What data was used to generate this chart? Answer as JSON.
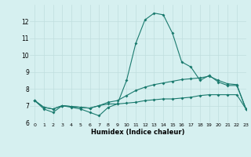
{
  "x": [
    0,
    1,
    2,
    3,
    4,
    5,
    6,
    7,
    8,
    9,
    10,
    11,
    12,
    13,
    14,
    15,
    16,
    17,
    18,
    19,
    20,
    21,
    22,
    23
  ],
  "line1": [
    7.3,
    6.8,
    6.6,
    7.0,
    6.9,
    6.8,
    6.6,
    6.4,
    6.9,
    7.1,
    8.5,
    10.7,
    12.1,
    12.5,
    12.4,
    11.3,
    9.6,
    9.3,
    8.5,
    8.8,
    8.4,
    8.2,
    8.2,
    6.8
  ],
  "line2": [
    7.3,
    6.9,
    6.8,
    7.0,
    6.95,
    6.9,
    6.85,
    7.0,
    7.2,
    7.3,
    7.6,
    7.9,
    8.1,
    8.25,
    8.35,
    8.45,
    8.55,
    8.6,
    8.65,
    8.75,
    8.5,
    8.3,
    8.25,
    6.8
  ],
  "line3": [
    7.3,
    6.9,
    6.8,
    7.0,
    6.95,
    6.9,
    6.85,
    7.0,
    7.1,
    7.1,
    7.15,
    7.2,
    7.3,
    7.35,
    7.4,
    7.4,
    7.45,
    7.5,
    7.6,
    7.65,
    7.65,
    7.65,
    7.65,
    6.8
  ],
  "line_color": "#1a7a6e",
  "bg_color": "#d6f0f0",
  "grid_color": "#c0dede",
  "xlabel": "Humidex (Indice chaleur)",
  "ylim": [
    6,
    13
  ],
  "xlim": [
    -0.5,
    23
  ],
  "yticks": [
    6,
    7,
    8,
    9,
    10,
    11,
    12
  ],
  "xticks": [
    0,
    1,
    2,
    3,
    4,
    5,
    6,
    7,
    8,
    9,
    10,
    11,
    12,
    13,
    14,
    15,
    16,
    17,
    18,
    19,
    20,
    21,
    22,
    23
  ]
}
